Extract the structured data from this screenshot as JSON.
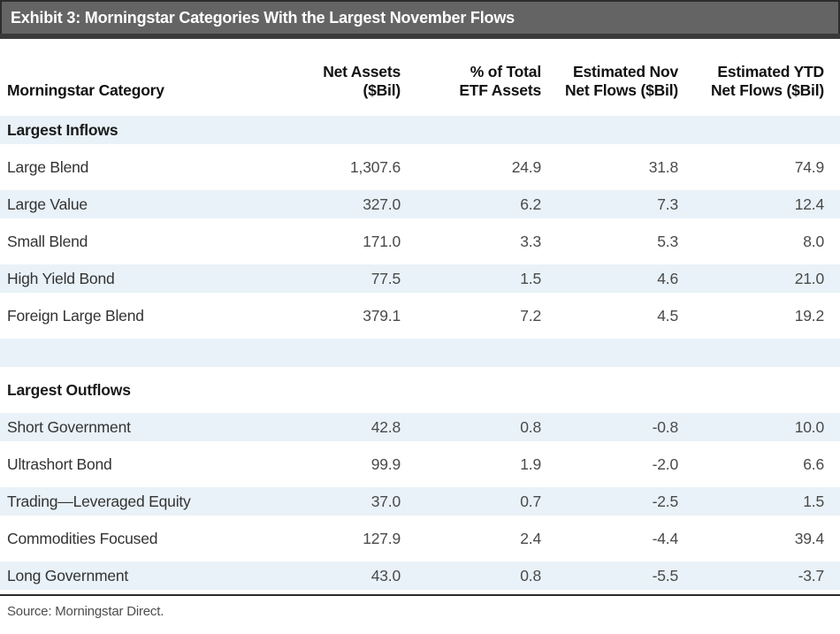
{
  "exhibit": {
    "title": "Exhibit 3: Morningstar Categories With the Largest November Flows"
  },
  "chart_data": {
    "type": "table",
    "title": "Exhibit 3: Morningstar Categories With the Largest November Flows",
    "columns": [
      {
        "line1": "",
        "line2": "Morningstar Category",
        "align": "left"
      },
      {
        "line1": "",
        "line2": "Net Assets ($Bil)",
        "align": "right"
      },
      {
        "line1": "% of Total",
        "line2": "ETF Assets",
        "align": "right"
      },
      {
        "line1": "Estimated Nov",
        "line2": "Net Flows ($Bil)",
        "align": "right"
      },
      {
        "line1": "Estimated YTD",
        "line2": "Net Flows ($Bil)",
        "align": "right"
      }
    ],
    "sections": [
      {
        "header": "Largest Inflows",
        "rows": [
          {
            "category": "Large Blend",
            "net_assets_bil": "1,307.6",
            "pct_of_total_etf_assets": "24.9",
            "est_nov_net_flows_bil": "31.8",
            "est_ytd_net_flows_bil": "74.9"
          },
          {
            "category": "Large Value",
            "net_assets_bil": "327.0",
            "pct_of_total_etf_assets": "6.2",
            "est_nov_net_flows_bil": "7.3",
            "est_ytd_net_flows_bil": "12.4"
          },
          {
            "category": "Small Blend",
            "net_assets_bil": "171.0",
            "pct_of_total_etf_assets": "3.3",
            "est_nov_net_flows_bil": "5.3",
            "est_ytd_net_flows_bil": "8.0"
          },
          {
            "category": "High Yield Bond",
            "net_assets_bil": "77.5",
            "pct_of_total_etf_assets": "1.5",
            "est_nov_net_flows_bil": "4.6",
            "est_ytd_net_flows_bil": "21.0"
          },
          {
            "category": "Foreign Large Blend",
            "net_assets_bil": "379.1",
            "pct_of_total_etf_assets": "7.2",
            "est_nov_net_flows_bil": "4.5",
            "est_ytd_net_flows_bil": "19.2"
          }
        ]
      },
      {
        "header": "Largest Outflows",
        "rows": [
          {
            "category": "Short Government",
            "net_assets_bil": "42.8",
            "pct_of_total_etf_assets": "0.8",
            "est_nov_net_flows_bil": "-0.8",
            "est_ytd_net_flows_bil": "10.0"
          },
          {
            "category": "Ultrashort Bond",
            "net_assets_bil": "99.9",
            "pct_of_total_etf_assets": "1.9",
            "est_nov_net_flows_bil": "-2.0",
            "est_ytd_net_flows_bil": "6.6"
          },
          {
            "category": "Trading—Leveraged Equity",
            "net_assets_bil": "37.0",
            "pct_of_total_etf_assets": "0.7",
            "est_nov_net_flows_bil": "-2.5",
            "est_ytd_net_flows_bil": "1.5"
          },
          {
            "category": "Commodities Focused",
            "net_assets_bil": "127.9",
            "pct_of_total_etf_assets": "2.4",
            "est_nov_net_flows_bil": "-4.4",
            "est_ytd_net_flows_bil": "39.4"
          },
          {
            "category": "Long Government",
            "net_assets_bil": "43.0",
            "pct_of_total_etf_assets": "0.8",
            "est_nov_net_flows_bil": "-5.5",
            "est_ytd_net_flows_bil": "-3.7"
          }
        ]
      }
    ]
  },
  "footer": {
    "source": "Source: Morningstar Direct."
  },
  "colors": {
    "header_bar": "#646464",
    "header_bar_border": "#2d2d2d",
    "header_bar_strip": "#3a3a3a",
    "row_stripe": "#e9f2f8",
    "bottom_rule": "#2b2b2b",
    "title_text": "#ffffff",
    "body_text": "#333333"
  }
}
